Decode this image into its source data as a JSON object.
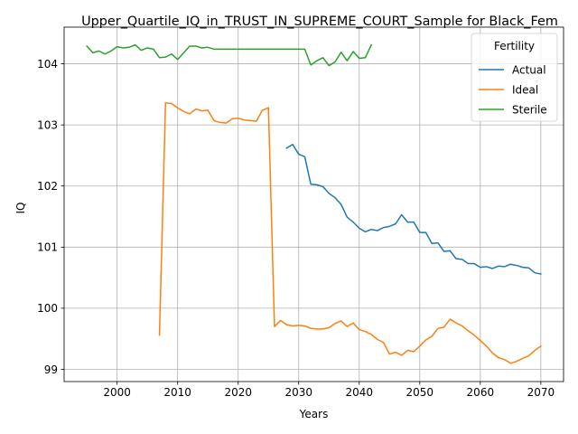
{
  "chart_data": {
    "type": "line",
    "title": "Upper_Quartile_IQ_in_TRUST_IN_SUPREME_COURT_Sample for Black_Fem",
    "xlabel": "Years",
    "ylabel": "IQ",
    "xlim": [
      1991.25,
      2073.75
    ],
    "ylim": [
      98.8,
      104.6
    ],
    "xticks": [
      2000,
      2010,
      2020,
      2030,
      2040,
      2050,
      2060,
      2070
    ],
    "yticks": [
      99,
      100,
      101,
      102,
      103,
      104
    ],
    "grid": true,
    "legend": {
      "title": "Fertility",
      "placement": "top-right"
    },
    "series": [
      {
        "name": "Actual",
        "color": "#1f77b4",
        "points": [
          [
            2028,
            102.62
          ],
          [
            2029,
            102.68
          ],
          [
            2030,
            102.52
          ],
          [
            2031,
            102.48
          ],
          [
            2032,
            102.03
          ],
          [
            2033,
            102.02
          ],
          [
            2034,
            101.99
          ],
          [
            2035,
            101.88
          ],
          [
            2036,
            101.81
          ],
          [
            2037,
            101.7
          ],
          [
            2038,
            101.49
          ],
          [
            2039,
            101.41
          ],
          [
            2040,
            101.31
          ],
          [
            2041,
            101.25
          ],
          [
            2042,
            101.29
          ],
          [
            2043,
            101.27
          ],
          [
            2044,
            101.32
          ],
          [
            2045,
            101.34
          ],
          [
            2046,
            101.38
          ],
          [
            2047,
            101.53
          ],
          [
            2048,
            101.41
          ],
          [
            2049,
            101.41
          ],
          [
            2050,
            101.24
          ],
          [
            2051,
            101.24
          ],
          [
            2052,
            101.06
          ],
          [
            2053,
            101.07
          ],
          [
            2054,
            100.93
          ],
          [
            2055,
            100.94
          ],
          [
            2056,
            100.81
          ],
          [
            2057,
            100.8
          ],
          [
            2058,
            100.73
          ],
          [
            2059,
            100.73
          ],
          [
            2060,
            100.67
          ],
          [
            2061,
            100.68
          ],
          [
            2062,
            100.65
          ],
          [
            2063,
            100.69
          ],
          [
            2064,
            100.68
          ],
          [
            2065,
            100.72
          ],
          [
            2066,
            100.7
          ],
          [
            2067,
            100.67
          ],
          [
            2068,
            100.66
          ],
          [
            2069,
            100.58
          ],
          [
            2070,
            100.56
          ]
        ]
      },
      {
        "name": "Ideal",
        "color": "#ff7f0e",
        "points": [
          [
            2007,
            99.56
          ],
          [
            2008,
            103.36
          ],
          [
            2009,
            103.35
          ],
          [
            2010,
            103.28
          ],
          [
            2011,
            103.22
          ],
          [
            2012,
            103.18
          ],
          [
            2013,
            103.26
          ],
          [
            2014,
            103.23
          ],
          [
            2015,
            103.24
          ],
          [
            2016,
            103.07
          ],
          [
            2017,
            103.04
          ],
          [
            2018,
            103.03
          ],
          [
            2019,
            103.1
          ],
          [
            2020,
            103.11
          ],
          [
            2021,
            103.08
          ],
          [
            2022,
            103.07
          ],
          [
            2023,
            103.06
          ],
          [
            2024,
            103.24
          ],
          [
            2025,
            103.28
          ],
          [
            2026,
            99.7
          ],
          [
            2027,
            99.8
          ],
          [
            2028,
            99.73
          ],
          [
            2029,
            99.71
          ],
          [
            2030,
            99.72
          ],
          [
            2031,
            99.71
          ],
          [
            2032,
            99.67
          ],
          [
            2033,
            99.66
          ],
          [
            2034,
            99.66
          ],
          [
            2035,
            99.68
          ],
          [
            2036,
            99.75
          ],
          [
            2037,
            99.79
          ],
          [
            2038,
            99.7
          ],
          [
            2039,
            99.76
          ],
          [
            2040,
            99.65
          ],
          [
            2041,
            99.62
          ],
          [
            2042,
            99.57
          ],
          [
            2043,
            99.49
          ],
          [
            2044,
            99.44
          ],
          [
            2045,
            99.25
          ],
          [
            2046,
            99.28
          ],
          [
            2047,
            99.23
          ],
          [
            2048,
            99.31
          ],
          [
            2049,
            99.29
          ],
          [
            2050,
            99.38
          ],
          [
            2051,
            99.48
          ],
          [
            2052,
            99.54
          ],
          [
            2053,
            99.67
          ],
          [
            2054,
            99.69
          ],
          [
            2055,
            99.82
          ],
          [
            2056,
            99.76
          ],
          [
            2057,
            99.71
          ],
          [
            2058,
            99.63
          ],
          [
            2059,
            99.56
          ],
          [
            2060,
            99.47
          ],
          [
            2061,
            99.38
          ],
          [
            2062,
            99.27
          ],
          [
            2063,
            99.19
          ],
          [
            2064,
            99.16
          ],
          [
            2065,
            99.1
          ],
          [
            2066,
            99.13
          ],
          [
            2067,
            99.18
          ],
          [
            2068,
            99.22
          ],
          [
            2069,
            99.31
          ],
          [
            2070,
            99.38
          ]
        ]
      },
      {
        "name": "Sterile",
        "color": "#2ca02c",
        "points": [
          [
            1995,
            104.29
          ],
          [
            1996,
            104.18
          ],
          [
            1997,
            104.21
          ],
          [
            1998,
            104.16
          ],
          [
            1999,
            104.21
          ],
          [
            2000,
            104.28
          ],
          [
            2001,
            104.26
          ],
          [
            2002,
            104.27
          ],
          [
            2003,
            104.31
          ],
          [
            2004,
            104.22
          ],
          [
            2005,
            104.26
          ],
          [
            2006,
            104.24
          ],
          [
            2007,
            104.1
          ],
          [
            2008,
            104.11
          ],
          [
            2009,
            104.16
          ],
          [
            2010,
            104.07
          ],
          [
            2011,
            104.18
          ],
          [
            2012,
            104.29
          ],
          [
            2013,
            104.29
          ],
          [
            2014,
            104.26
          ],
          [
            2015,
            104.27
          ],
          [
            2016,
            104.24
          ],
          [
            2017,
            104.24
          ],
          [
            2018,
            104.24
          ],
          [
            2019,
            104.24
          ],
          [
            2020,
            104.24
          ],
          [
            2021,
            104.24
          ],
          [
            2022,
            104.24
          ],
          [
            2023,
            104.24
          ],
          [
            2024,
            104.24
          ],
          [
            2025,
            104.24
          ],
          [
            2026,
            104.24
          ],
          [
            2027,
            104.24
          ],
          [
            2028,
            104.24
          ],
          [
            2029,
            104.24
          ],
          [
            2030,
            104.24
          ],
          [
            2031,
            104.24
          ],
          [
            2032,
            103.98
          ],
          [
            2033,
            104.05
          ],
          [
            2034,
            104.1
          ],
          [
            2035,
            103.97
          ],
          [
            2036,
            104.03
          ],
          [
            2037,
            104.19
          ],
          [
            2038,
            104.05
          ],
          [
            2039,
            104.2
          ],
          [
            2040,
            104.09
          ],
          [
            2041,
            104.1
          ],
          [
            2042,
            104.31
          ]
        ]
      }
    ]
  }
}
